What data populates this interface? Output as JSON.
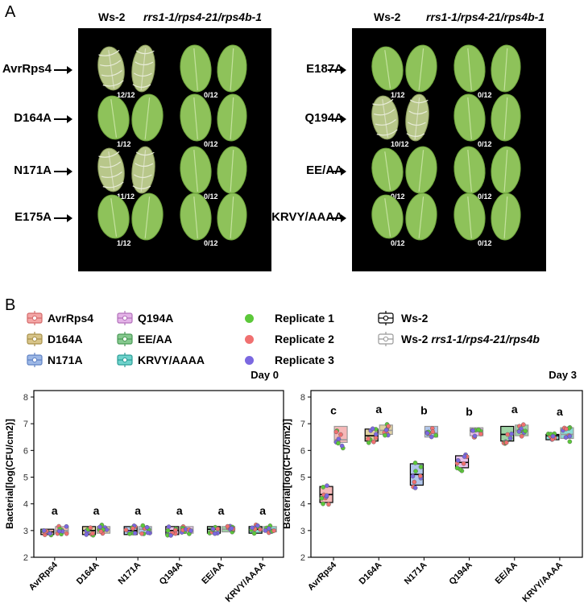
{
  "panel_a": {
    "letter": "A",
    "left": {
      "header_wt": "Ws-2",
      "header_mut": "rrs1-1/rps4-21/rps4b-1",
      "rows": [
        {
          "label": "AvrRps4",
          "wt_count": "12/12",
          "mut_count": "0/12",
          "wt_state": "collapsed"
        },
        {
          "label": "D164A",
          "wt_count": "1/12",
          "mut_count": "0/12",
          "wt_state": "healthy"
        },
        {
          "label": "N171A",
          "wt_count": "11/12",
          "mut_count": "0/12",
          "wt_state": "collapsed"
        },
        {
          "label": "E175A",
          "wt_count": "1/12",
          "mut_count": "0/12",
          "wt_state": "healthy"
        }
      ]
    },
    "right": {
      "header_wt": "Ws-2",
      "header_mut": "rrs1-1/rps4-21/rps4b-1",
      "rows": [
        {
          "label": "E187A",
          "wt_count": "1/12",
          "mut_count": "0/12",
          "wt_state": "healthy"
        },
        {
          "label": "Q194A",
          "wt_count": "10/12",
          "mut_count": "0/12",
          "wt_state": "collapsed"
        },
        {
          "label": "EE/AA",
          "wt_count": "0/12",
          "mut_count": "0/12",
          "wt_state": "healthy"
        },
        {
          "label": "KRVY/AAAA",
          "wt_count": "0/12",
          "mut_count": "0/12",
          "wt_state": "healthy"
        }
      ]
    }
  },
  "panel_b": {
    "letter": "B",
    "legend": {
      "effectors": [
        {
          "label": "AvrRps4",
          "color": "#f4a6a6",
          "edge": "#d46a6a"
        },
        {
          "label": "D164A",
          "color": "#d8c58a",
          "edge": "#a8914a"
        },
        {
          "label": "N171A",
          "color": "#9db8e6",
          "edge": "#5f82c4"
        },
        {
          "label": "Q194A",
          "color": "#e4b3e8",
          "edge": "#b271ba"
        },
        {
          "label": "EE/AA",
          "color": "#86c98f",
          "edge": "#4a9a56"
        },
        {
          "label": "KRVY/AAAA",
          "color": "#6fd3cc",
          "edge": "#2b9e97"
        }
      ],
      "replicates": [
        {
          "label": "Replicate 1",
          "color": "#5cc83a"
        },
        {
          "label": "Replicate 2",
          "color": "#f07070"
        },
        {
          "label": "Replicate 3",
          "color": "#7b68e0"
        }
      ],
      "genotypes": [
        {
          "label": "Ws-2",
          "edge": "#000000"
        },
        {
          "label_prefix": "Ws-2 ",
          "label_italic": "rrs1-1/rps4-21/rps4b",
          "edge": "#999999"
        }
      ]
    }
  },
  "chart_data": [
    {
      "type": "box",
      "title": "Day 0",
      "xlabel": "",
      "ylabel": "Bacterial[log(CFU/cm2)]",
      "ylim": [
        2,
        8
      ],
      "yticks": [
        2,
        3,
        4,
        5,
        6,
        7,
        8
      ],
      "categories": [
        "AvrRps4",
        "D164A",
        "N171A",
        "Q194A",
        "EE/AA",
        "KRVY/AAAA"
      ],
      "letters": [
        "a",
        "a",
        "a",
        "a",
        "a",
        "a"
      ],
      "series": [
        {
          "genotype": "Ws-2",
          "medians": [
            2.95,
            3.0,
            3.0,
            3.0,
            3.05,
            3.05
          ],
          "q1": [
            2.85,
            2.85,
            2.85,
            2.85,
            2.9,
            2.9
          ],
          "q3": [
            3.05,
            3.15,
            3.15,
            3.15,
            3.15,
            3.15
          ]
        },
        {
          "genotype": "Ws-2 rrs1-1/rps4-21/rps4b",
          "medians": [
            3.0,
            3.05,
            3.05,
            3.05,
            3.05,
            3.05
          ],
          "q1": [
            2.9,
            2.9,
            2.9,
            2.9,
            2.95,
            2.95
          ],
          "q3": [
            3.15,
            3.15,
            3.15,
            3.15,
            3.15,
            3.15
          ]
        }
      ]
    },
    {
      "type": "box",
      "title": "Day 3",
      "xlabel": "",
      "ylabel": "Bacterial[log(CFU/cm2)]",
      "ylim": [
        2,
        8
      ],
      "yticks": [
        2,
        3,
        4,
        5,
        6,
        7,
        8
      ],
      "categories": [
        "AvrRps4",
        "D164A",
        "N171A",
        "Q194A",
        "EE/AA",
        "KRVY/AAAA"
      ],
      "letters": [
        "c",
        "a",
        "b",
        "b",
        "a",
        "a"
      ],
      "series": [
        {
          "genotype": "Ws-2",
          "medians": [
            4.35,
            6.55,
            5.1,
            5.55,
            6.6,
            6.55
          ],
          "q1": [
            4.05,
            6.35,
            4.7,
            5.35,
            6.35,
            6.4
          ],
          "q3": [
            4.65,
            6.8,
            5.5,
            5.8,
            6.9,
            6.6
          ]
        },
        {
          "genotype": "Ws-2 rrs1-1/rps4-21/rps4b",
          "medians": [
            6.4,
            6.75,
            6.65,
            6.7,
            6.75,
            6.6
          ],
          "q1": [
            6.3,
            6.6,
            6.5,
            6.55,
            6.55,
            6.45
          ],
          "q3": [
            6.9,
            6.95,
            6.9,
            6.85,
            6.95,
            6.85
          ]
        }
      ]
    }
  ]
}
